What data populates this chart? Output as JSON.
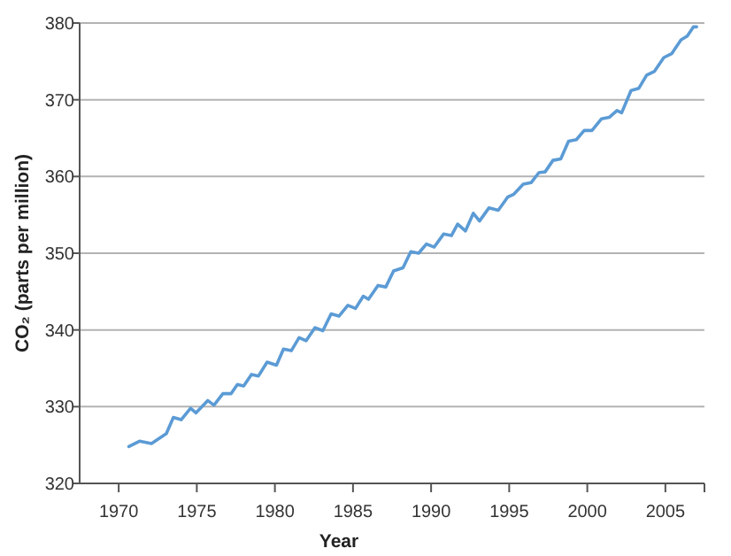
{
  "chart_data": {
    "type": "line",
    "xlabel": "Year",
    "ylabel": "CO₂ (parts per million)",
    "xlim": [
      1967.5,
      2007.5
    ],
    "xticks": [
      1970,
      1975,
      1980,
      1985,
      1990,
      1995,
      2000,
      2005
    ],
    "ylim": [
      320,
      380
    ],
    "yticks": [
      320,
      330,
      340,
      350,
      360,
      370,
      380
    ],
    "grid": "y",
    "marker": "none",
    "line_style": "solid",
    "series": [
      {
        "color": "#5b9bd5",
        "x": [
          1970.65,
          1971.33,
          1972.1,
          1973.05,
          1973.5,
          1974.0,
          1974.6,
          1974.95,
          1975.7,
          1976.1,
          1976.67,
          1977.2,
          1977.6,
          1978.0,
          1978.5,
          1978.95,
          1979.5,
          1980.1,
          1980.55,
          1981.05,
          1981.55,
          1982.0,
          1982.57,
          1983.07,
          1983.6,
          1984.1,
          1984.67,
          1985.16,
          1985.66,
          1985.99,
          1986.6,
          1987.1,
          1987.6,
          1988.2,
          1988.7,
          1989.2,
          1989.7,
          1990.2,
          1990.8,
          1991.3,
          1991.7,
          1992.2,
          1992.7,
          1993.1,
          1993.7,
          1994.3,
          1994.9,
          1995.3,
          1995.9,
          1996.4,
          1996.9,
          1997.3,
          1997.8,
          1998.3,
          1998.8,
          1999.3,
          1999.8,
          2000.3,
          2000.9,
          2001.4,
          2001.9,
          2002.2,
          2002.8,
          2003.3,
          2003.8,
          2004.3,
          2004.9,
          2005.4,
          2006.0,
          2006.4,
          2006.8,
          2007.0
        ],
        "values": [
          324.8,
          325.5,
          325.2,
          326.5,
          328.6,
          328.3,
          329.8,
          329.2,
          330.8,
          330.2,
          331.7,
          331.7,
          332.9,
          332.7,
          334.2,
          334.0,
          335.8,
          335.4,
          337.5,
          337.3,
          339.0,
          338.6,
          340.3,
          339.9,
          342.1,
          341.8,
          343.2,
          342.8,
          344.4,
          344.0,
          345.8,
          345.6,
          347.7,
          348.1,
          350.2,
          350.0,
          351.2,
          350.8,
          352.5,
          352.3,
          353.8,
          352.9,
          355.2,
          354.2,
          355.9,
          355.6,
          357.3,
          357.7,
          359.0,
          359.2,
          360.5,
          360.6,
          362.1,
          362.3,
          364.6,
          364.8,
          366.0,
          366.0,
          367.5,
          367.7,
          368.6,
          368.3,
          371.2,
          371.5,
          373.2,
          373.7,
          375.5,
          376.0,
          377.8,
          378.3,
          379.5,
          379.5
        ]
      }
    ]
  }
}
